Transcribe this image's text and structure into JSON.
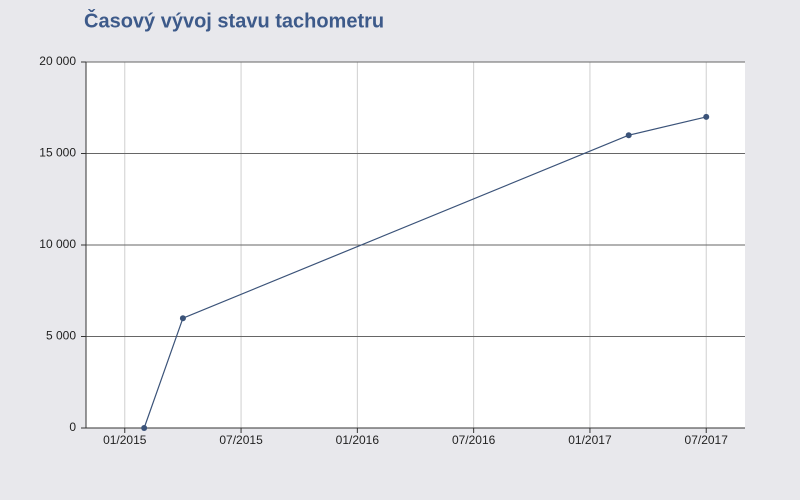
{
  "chart_data": {
    "type": "line",
    "title": "Časový vývoj stavu tachometru",
    "x": [
      "2015-02",
      "2015-04",
      "2017-03",
      "2017-07"
    ],
    "series": [
      {
        "color": "#3b5379",
        "values": [
          0,
          6000,
          16000,
          17000
        ]
      }
    ],
    "xlim": [
      "2014-11",
      "2017-09"
    ],
    "xticks": [
      {
        "value": "2015-01",
        "label": "01/2015"
      },
      {
        "value": "2015-07",
        "label": "07/2015"
      },
      {
        "value": "2016-01",
        "label": "01/2016"
      },
      {
        "value": "2016-07",
        "label": "07/2016"
      },
      {
        "value": "2017-01",
        "label": "01/2017"
      },
      {
        "value": "2017-07",
        "label": "07/2017"
      }
    ],
    "ylim": [
      0,
      20000
    ],
    "yticks": [
      0,
      {
        "value": 5000,
        "label": "5 000"
      },
      {
        "value": 10000,
        "label": "10 000"
      },
      {
        "value": 15000,
        "label": "15 000"
      },
      {
        "value": 20000,
        "label": "20 000"
      }
    ],
    "grid": true
  }
}
